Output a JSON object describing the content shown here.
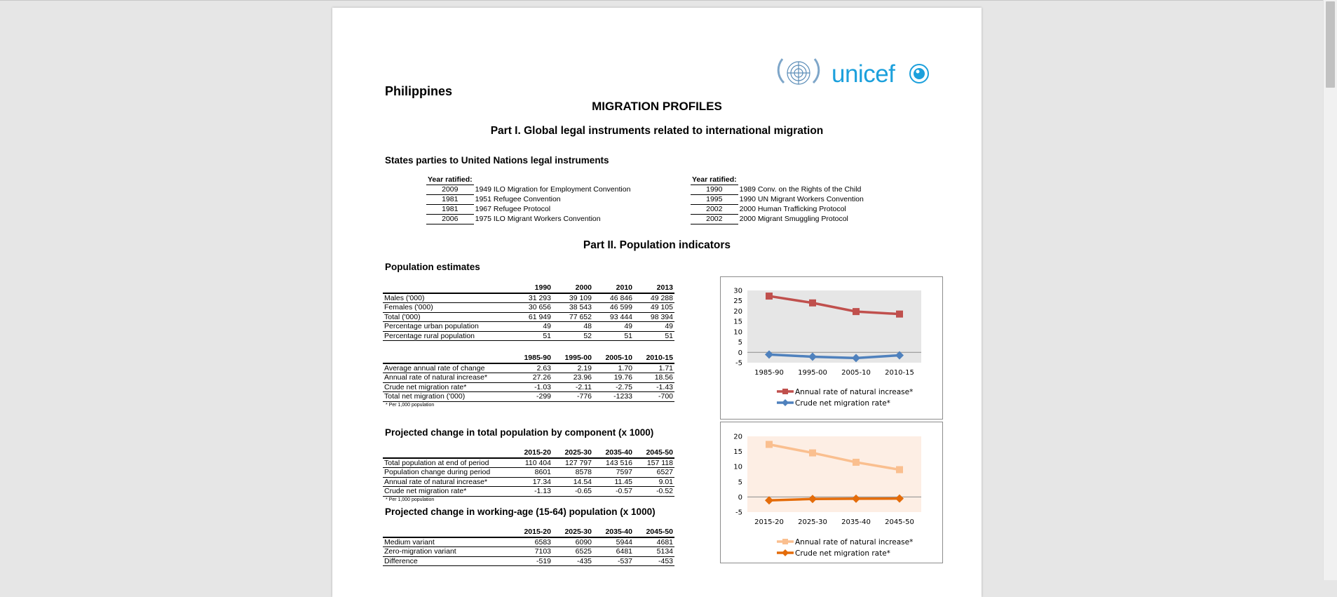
{
  "header": {
    "country": "Philippines",
    "title": "MIGRATION PROFILES",
    "logo_text": "unicef"
  },
  "part1": {
    "title": "Part I. Global legal instruments related to international migration",
    "section_title": "States parties to United Nations legal instruments",
    "year_header": "Year ratified:",
    "left": [
      {
        "year": "2009",
        "name": "1949 ILO Migration for Employment Convention"
      },
      {
        "year": "1981",
        "name": "1951 Refugee Convention"
      },
      {
        "year": "1981",
        "name": "1967 Refugee Protocol"
      },
      {
        "year": "2006",
        "name": "1975 ILO Migrant Workers Convention"
      }
    ],
    "right": [
      {
        "year": "1990",
        "name": "1989 Conv. on the Rights of the Child"
      },
      {
        "year": "1995",
        "name": "1990 UN Migrant Workers Convention"
      },
      {
        "year": "2002",
        "name": "2000 Human Trafficking Protocol"
      },
      {
        "year": "2002",
        "name": "2000 Migrant Smuggling Protocol"
      }
    ]
  },
  "part2": {
    "title": "Part II. Population indicators",
    "pop_estimates": {
      "title": "Population estimates",
      "table1": {
        "columns": [
          "1990",
          "2000",
          "2010",
          "2013"
        ],
        "rows": [
          {
            "label": "Males ('000)",
            "values": [
              "31 293",
              "39 109",
              "46 846",
              "49 288"
            ]
          },
          {
            "label": "Females ('000)",
            "values": [
              "30 656",
              "38 543",
              "46 599",
              "49 105"
            ]
          },
          {
            "label": "Total ('000)",
            "values": [
              "61 949",
              "77 652",
              "93 444",
              "98 394"
            ]
          },
          {
            "label": "Percentage urban population",
            "values": [
              "49",
              "48",
              "49",
              "49"
            ]
          },
          {
            "label": "Percentage rural population",
            "values": [
              "51",
              "52",
              "51",
              "51"
            ]
          }
        ]
      },
      "table2": {
        "columns": [
          "1985-90",
          "1995-00",
          "2005-10",
          "2010-15"
        ],
        "rows": [
          {
            "label": "Average annual rate of change",
            "values": [
              "2.63",
              "2.19",
              "1.70",
              "1.71"
            ]
          },
          {
            "label": "Annual rate of natural increase*",
            "values": [
              "27.26",
              "23.96",
              "19.76",
              "18.56"
            ]
          },
          {
            "label": "Crude net migration rate*",
            "values": [
              "-1.03",
              "-2.11",
              "-2.75",
              "-1.43"
            ]
          },
          {
            "label": "Total net migration ('000)",
            "values": [
              "-299",
              "-776",
              "-1233",
              "-700"
            ]
          }
        ],
        "note": "* Per 1,000 population"
      }
    },
    "projected_component": {
      "title": "Projected change in total population by component (x 1000)",
      "columns": [
        "2015-20",
        "2025-30",
        "2035-40",
        "2045-50"
      ],
      "rows": [
        {
          "label": "Total population at end of period",
          "values": [
            "110 404",
            "127 797",
            "143 516",
            "157 118"
          ]
        },
        {
          "label": "Population change during period",
          "values": [
            "8601",
            "8578",
            "7597",
            "6527"
          ]
        },
        {
          "label": "Annual rate of natural increase*",
          "values": [
            "17.34",
            "14.54",
            "11.45",
            "9.01"
          ]
        },
        {
          "label": "Crude net migration rate*",
          "values": [
            "-1.13",
            "-0.65",
            "-0.57",
            "-0.52"
          ]
        }
      ],
      "note": "* Per 1,000 population"
    },
    "projected_working": {
      "title": "Projected change in working-age (15-64) population (x 1000)",
      "columns": [
        "2015-20",
        "2025-30",
        "2035-40",
        "2045-50"
      ],
      "rows": [
        {
          "label": "Medium variant",
          "values": [
            "6583",
            "6090",
            "5944",
            "4681"
          ]
        },
        {
          "label": "Zero-migration variant",
          "values": [
            "7103",
            "6525",
            "6481",
            "5134"
          ]
        },
        {
          "label": "Difference",
          "values": [
            "-519",
            "-435",
            "-537",
            "-453"
          ]
        }
      ]
    }
  },
  "chart_data": [
    {
      "type": "line",
      "x": [
        "1985-90",
        "1995-00",
        "2005-10",
        "2010-15"
      ],
      "ylim": [
        -5,
        30
      ],
      "yticks": [
        30,
        25,
        20,
        15,
        10,
        5,
        0,
        -5
      ],
      "plot_background": "#e6e6e6",
      "legend_position": "bottom",
      "series": [
        {
          "name": "Annual rate of natural increase*",
          "values": [
            27.26,
            23.96,
            19.76,
            18.56
          ],
          "color": "#c0504d",
          "marker": "square"
        },
        {
          "name": "Crude net migration rate*",
          "values": [
            -1.03,
            -2.11,
            -2.75,
            -1.43
          ],
          "color": "#4f81bd",
          "marker": "diamond"
        }
      ]
    },
    {
      "type": "line",
      "x": [
        "2015-20",
        "2025-30",
        "2035-40",
        "2045-50"
      ],
      "ylim": [
        -5,
        20
      ],
      "yticks": [
        20,
        15,
        10,
        5,
        0,
        -5
      ],
      "plot_background": "#fdeee4",
      "legend_position": "bottom",
      "series": [
        {
          "name": "Annual rate of natural increase*",
          "values": [
            17.34,
            14.54,
            11.45,
            9.01
          ],
          "color": "#fabf8f",
          "marker": "square"
        },
        {
          "name": "Crude net migration rate*",
          "values": [
            -1.13,
            -0.65,
            -0.57,
            -0.52
          ],
          "color": "#e46c0a",
          "marker": "diamond"
        }
      ]
    }
  ]
}
